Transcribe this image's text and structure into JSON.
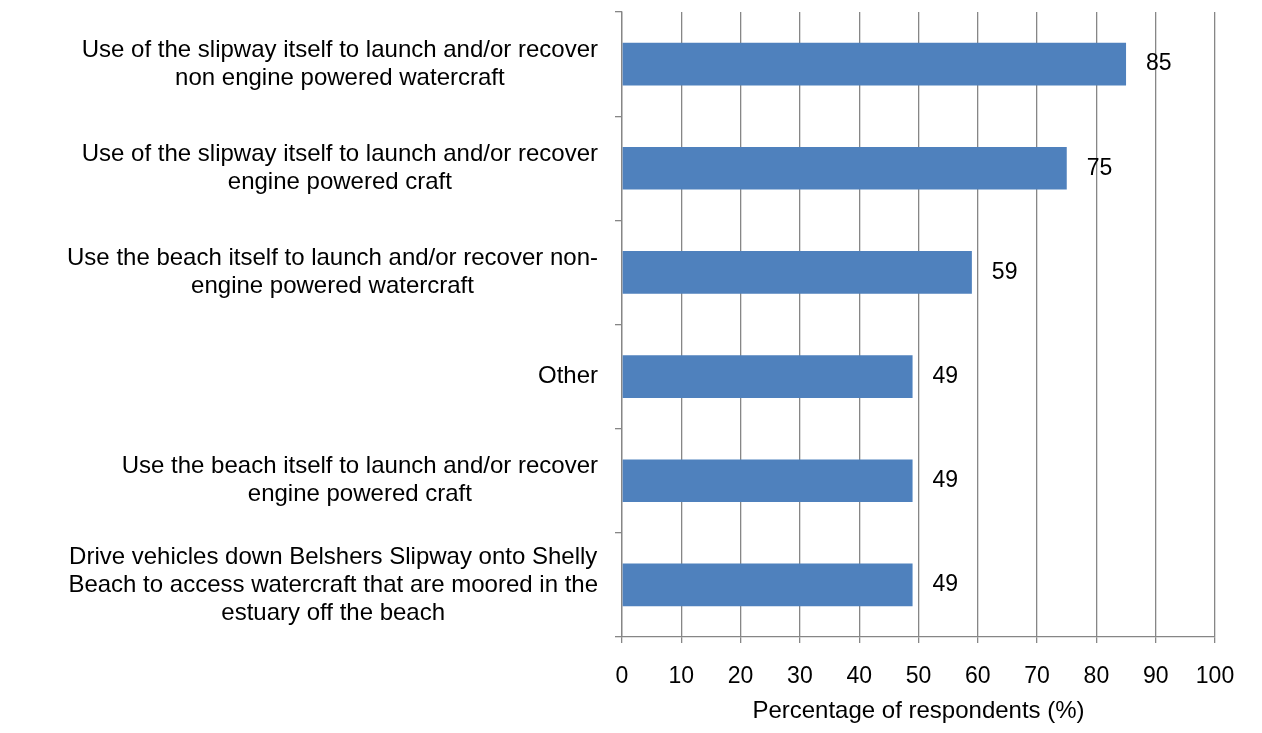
{
  "chart_data": {
    "type": "bar",
    "orientation": "horizontal",
    "categories": [
      "Use of the slipway itself to launch and/or recover non engine powered watercraft",
      "Use of the slipway itself to launch and/or recover engine powered craft",
      "Use the beach itself to launch and/or recover non-engine powered watercraft",
      "Other",
      "Use the beach itself to launch and/or recover engine powered craft",
      "Drive vehicles down Belshers Slipway onto Shelly Beach to access watercraft that are moored in the estuary off the beach"
    ],
    "values": [
      85,
      75,
      59,
      49,
      49,
      49
    ],
    "color": "#4f81bd",
    "xlabel": "Percentage of respondents (%)",
    "xlim": [
      0,
      100
    ],
    "xticks": [
      0,
      10,
      20,
      30,
      40,
      50,
      60,
      70,
      80,
      90,
      100
    ],
    "grid": "x",
    "data_labels": true
  }
}
